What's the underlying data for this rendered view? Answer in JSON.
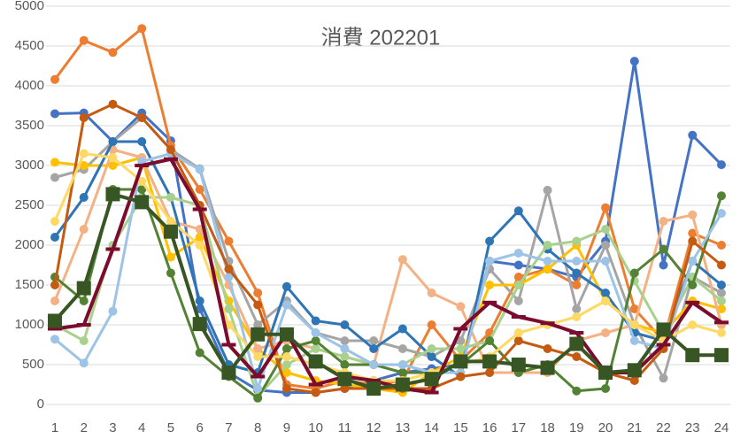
{
  "chart_data": {
    "type": "line",
    "title": "消費 202201",
    "x": [
      1,
      2,
      3,
      4,
      5,
      6,
      7,
      8,
      9,
      10,
      11,
      12,
      13,
      14,
      15,
      16,
      17,
      18,
      19,
      20,
      21,
      22,
      23,
      24
    ],
    "xlim": [
      1,
      24
    ],
    "xticks": [
      1,
      2,
      3,
      4,
      5,
      6,
      7,
      8,
      9,
      10,
      11,
      12,
      13,
      14,
      15,
      16,
      17,
      18,
      19,
      20,
      21,
      22,
      23,
      24
    ],
    "ylim": [
      0,
      5000
    ],
    "yticks": [
      0,
      500,
      1000,
      1500,
      2000,
      2500,
      3000,
      3500,
      4000,
      4500,
      5000
    ],
    "grid": true,
    "series": [
      {
        "color": "#4472c4",
        "marker": "circle",
        "values": [
          3650,
          3660,
          3300,
          3660,
          3310,
          1200,
          400,
          180,
          150,
          150,
          200,
          300,
          400,
          450,
          500,
          1800,
          1750,
          1700,
          1600,
          2050,
          4310,
          1750,
          3380,
          3010
        ]
      },
      {
        "color": "#ed7d31",
        "marker": "circle",
        "values": [
          4080,
          4570,
          4420,
          4720,
          3250,
          2700,
          2050,
          1400,
          250,
          200,
          300,
          250,
          300,
          1000,
          550,
          900,
          1600,
          1700,
          1500,
          2470,
          1200,
          800,
          2150,
          2000
        ]
      },
      {
        "color": "#a5a5a5",
        "marker": "circle",
        "values": [
          2850,
          2950,
          3300,
          3600,
          3200,
          2960,
          1800,
          1000,
          1300,
          900,
          800,
          800,
          700,
          600,
          800,
          1700,
          1300,
          2690,
          1200,
          2000,
          1000,
          330,
          1600,
          1400
        ]
      },
      {
        "color": "#ffc000",
        "marker": "circle",
        "values": [
          3040,
          3000,
          3000,
          3100,
          1850,
          2100,
          1300,
          700,
          400,
          300,
          250,
          200,
          150,
          400,
          600,
          1500,
          1500,
          1700,
          2000,
          1300,
          1000,
          900,
          1300,
          1200
        ]
      },
      {
        "color": "#f4b183",
        "marker": "circle",
        "values": [
          1300,
          2200,
          3200,
          3100,
          2300,
          2200,
          1500,
          700,
          800,
          700,
          600,
          500,
          1820,
          1400,
          1230,
          400,
          400,
          400,
          800,
          900,
          1000,
          2300,
          2380,
          1000
        ]
      },
      {
        "color": "#2e75b6",
        "marker": "circle",
        "values": [
          2100,
          2600,
          3300,
          3300,
          2600,
          1300,
          500,
          400,
          1480,
          1050,
          1000,
          700,
          950,
          600,
          350,
          2050,
          2430,
          1950,
          1650,
          1400,
          900,
          800,
          1800,
          1500
        ]
      },
      {
        "color": "#a9d18e",
        "marker": "circle",
        "values": [
          1000,
          800,
          2000,
          2600,
          2600,
          2500,
          1200,
          100,
          500,
          700,
          600,
          500,
          500,
          700,
          700,
          800,
          1500,
          2000,
          2050,
          2200,
          1550,
          900,
          1600,
          1300
        ]
      },
      {
        "color": "#548235",
        "marker": "circle",
        "values": [
          1600,
          1300,
          2700,
          2700,
          1650,
          650,
          350,
          80,
          700,
          800,
          500,
          500,
          400,
          400,
          500,
          800,
          400,
          500,
          170,
          200,
          1650,
          1950,
          1500,
          2620
        ]
      },
      {
        "color": "#9dc3e6",
        "marker": "circle",
        "values": [
          820,
          520,
          1170,
          3050,
          3150,
          2950,
          1600,
          200,
          1250,
          900,
          700,
          500,
          500,
          400,
          400,
          1800,
          1900,
          1800,
          1800,
          1800,
          800,
          700,
          1800,
          2400
        ]
      },
      {
        "color": "#c55a11",
        "marker": "circle",
        "values": [
          1500,
          3600,
          3770,
          3600,
          3200,
          2500,
          1700,
          1250,
          200,
          150,
          200,
          200,
          200,
          200,
          350,
          400,
          800,
          700,
          600,
          400,
          300,
          700,
          2050,
          1750
        ]
      },
      {
        "color": "#ffd966",
        "marker": "circle",
        "values": [
          2300,
          3150,
          3100,
          2800,
          2300,
          2000,
          1000,
          600,
          600,
          500,
          400,
          300,
          300,
          400,
          500,
          600,
          900,
          1000,
          1100,
          1300,
          1000,
          800,
          1000,
          900
        ]
      },
      {
        "color": "#7b0c2e",
        "marker": "dash",
        "values": [
          950,
          1000,
          1950,
          3000,
          3080,
          2450,
          750,
          350,
          900,
          250,
          350,
          300,
          200,
          150,
          950,
          1280,
          1100,
          1020,
          900,
          400,
          400,
          750,
          1280,
          1030
        ]
      },
      {
        "color": "#375623",
        "marker": "square",
        "values": [
          1050,
          1460,
          2640,
          2540,
          2170,
          1010,
          400,
          880,
          880,
          540,
          320,
          200,
          250,
          320,
          540,
          540,
          500,
          460,
          760,
          400,
          430,
          940,
          620,
          620
        ]
      }
    ]
  }
}
